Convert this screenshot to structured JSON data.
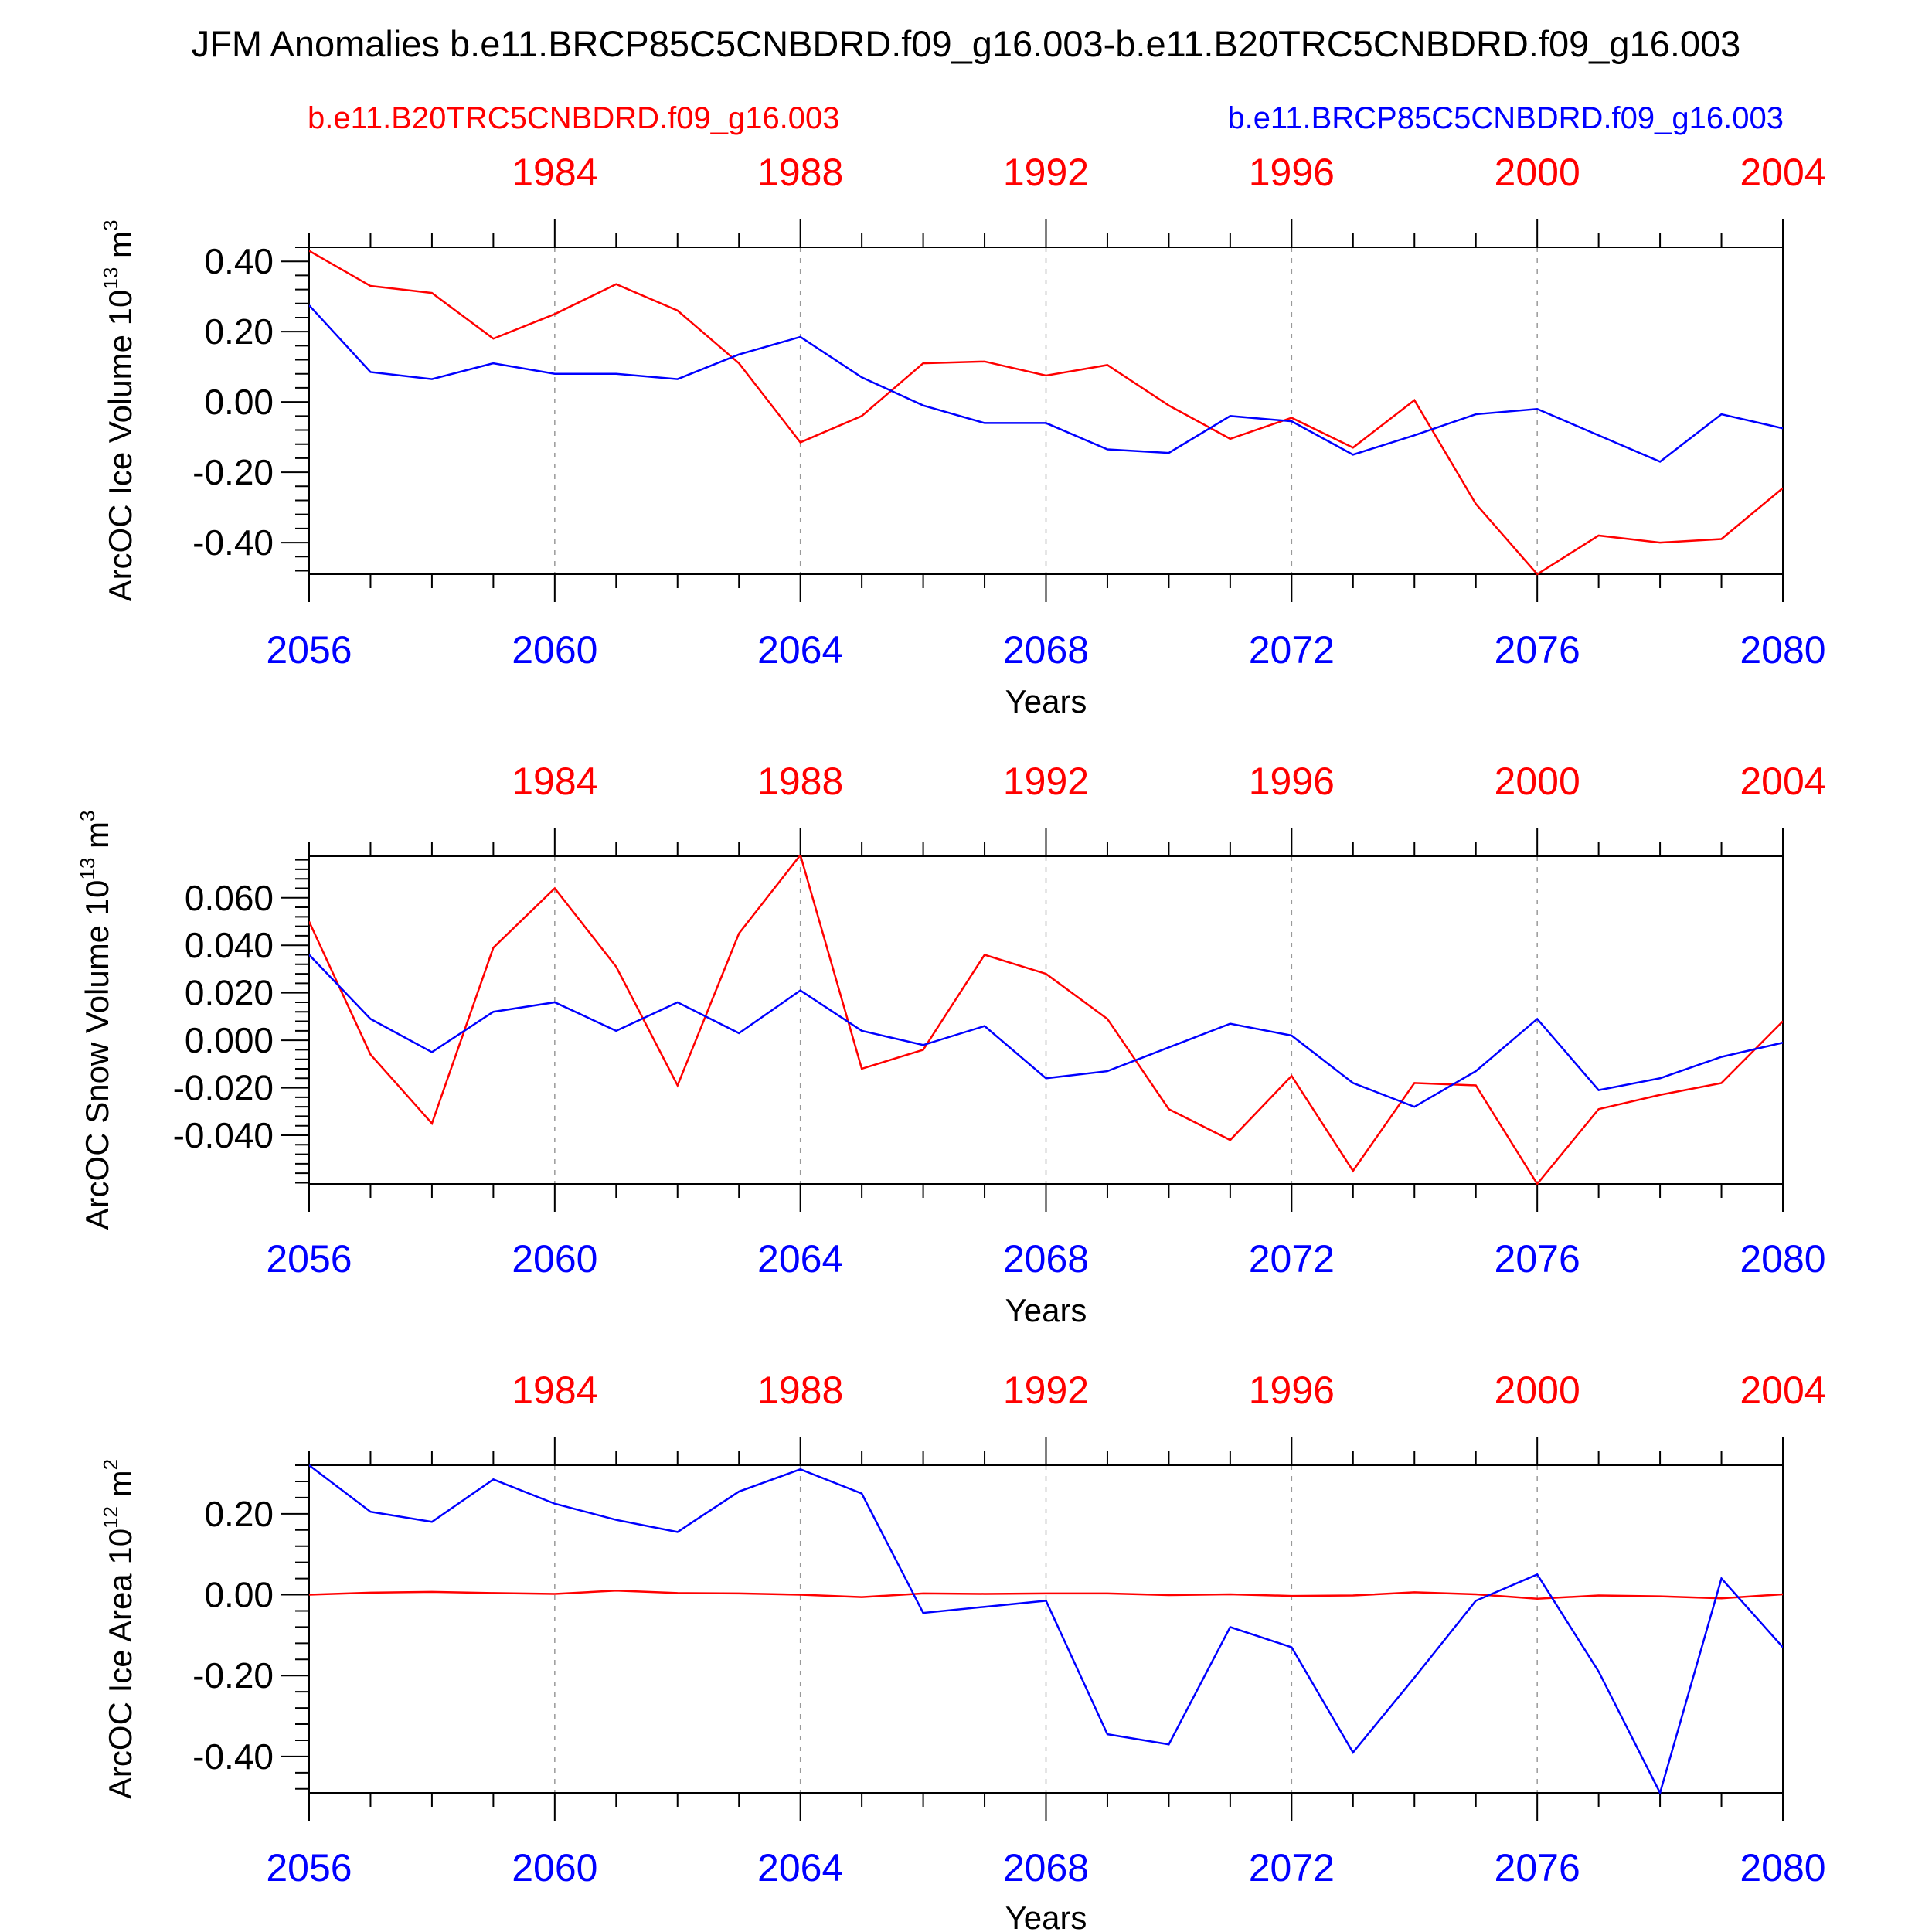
{
  "title": "JFM Anomalies b.e11.BRCP85C5CNBDRD.f09_g16.003-b.e11.B20TRC5CNBDRD.f09_g16.003",
  "legend": {
    "red_label": "b.e11.B20TRC5CNBDRD.f09_g16.003",
    "blue_label": "b.e11.BRCP85C5CNBDRD.f09_g16.003"
  },
  "colors": {
    "red": "#ff0000",
    "blue": "#0000ff",
    "axis": "#000000",
    "grid": "#999999"
  },
  "chart_data": [
    {
      "type": "line",
      "ylabel": "ArcOC Ice Volume 10",
      "ylabel_sup": "13",
      "ylabel_unit": " m",
      "ylabel_unit_sup": "3",
      "xlabel": "Years",
      "x_bottom": [
        2056,
        2057,
        2058,
        2059,
        2060,
        2061,
        2062,
        2063,
        2064,
        2065,
        2066,
        2067,
        2068,
        2069,
        2070,
        2071,
        2072,
        2073,
        2074,
        2075,
        2076,
        2077,
        2078,
        2079,
        2080
      ],
      "x_top_ticks": [
        1984,
        1988,
        1992,
        1996,
        2000,
        2004
      ],
      "x_bottom_ticks": [
        2056,
        2060,
        2064,
        2068,
        2072,
        2076,
        2080
      ],
      "y_ticks": [
        "0.40",
        "0.20",
        "0.00",
        "-0.20",
        "-0.40"
      ],
      "y_tick_values": [
        0.4,
        0.2,
        0.0,
        -0.2,
        -0.4
      ],
      "ylim": [
        -0.49,
        0.44
      ],
      "series": [
        {
          "name": "b.e11.B20TRC5CNBDRD.f09_g16.003",
          "color": "red",
          "values": [
            0.43,
            0.33,
            0.31,
            0.18,
            0.25,
            0.335,
            0.26,
            0.11,
            -0.115,
            -0.04,
            0.11,
            0.115,
            0.075,
            0.105,
            -0.01,
            -0.105,
            -0.045,
            -0.13,
            0.005,
            -0.29,
            -0.49,
            -0.38,
            -0.4,
            -0.39,
            -0.245
          ]
        },
        {
          "name": "b.e11.BRCP85C5CNBDRD.f09_g16.003",
          "color": "blue",
          "values": [
            0.275,
            0.085,
            0.065,
            0.11,
            0.08,
            0.08,
            0.065,
            0.135,
            0.185,
            0.07,
            -0.01,
            -0.06,
            -0.06,
            -0.135,
            -0.145,
            -0.04,
            -0.055,
            -0.15,
            -0.095,
            -0.035,
            -0.02,
            -0.095,
            -0.17,
            -0.035,
            -0.075
          ]
        }
      ]
    },
    {
      "type": "line",
      "ylabel": "ArcOC Snow Volume 10",
      "ylabel_sup": "13",
      "ylabel_unit": " m",
      "ylabel_unit_sup": "3",
      "xlabel": "Years",
      "x_bottom": [
        2056,
        2057,
        2058,
        2059,
        2060,
        2061,
        2062,
        2063,
        2064,
        2065,
        2066,
        2067,
        2068,
        2069,
        2070,
        2071,
        2072,
        2073,
        2074,
        2075,
        2076,
        2077,
        2078,
        2079,
        2080
      ],
      "x_top_ticks": [
        1984,
        1988,
        1992,
        1996,
        2000,
        2004
      ],
      "x_bottom_ticks": [
        2056,
        2060,
        2064,
        2068,
        2072,
        2076,
        2080
      ],
      "y_ticks": [
        "0.060",
        "0.040",
        "0.020",
        "0.000",
        "-0.020",
        "-0.040"
      ],
      "y_tick_values": [
        0.06,
        0.04,
        0.02,
        0.0,
        -0.02,
        -0.04
      ],
      "ylim": [
        -0.0605,
        0.0775
      ],
      "series": [
        {
          "name": "b.e11.B20TRC5CNBDRD.f09_g16.003",
          "color": "red",
          "values": [
            0.05,
            -0.006,
            -0.035,
            0.039,
            0.064,
            0.031,
            -0.019,
            0.045,
            0.078,
            -0.012,
            -0.004,
            0.036,
            0.028,
            0.009,
            -0.029,
            -0.042,
            -0.015,
            -0.055,
            -0.018,
            -0.019,
            -0.0605,
            -0.029,
            -0.023,
            -0.018,
            0.008
          ]
        },
        {
          "name": "b.e11.BRCP85C5CNBDRD.f09_g16.003",
          "color": "blue",
          "values": [
            0.036,
            0.009,
            -0.005,
            0.012,
            0.016,
            0.004,
            0.016,
            0.003,
            0.021,
            0.004,
            -0.002,
            0.006,
            -0.016,
            -0.013,
            -0.003,
            0.007,
            0.002,
            -0.018,
            -0.028,
            -0.013,
            0.009,
            -0.021,
            -0.016,
            -0.007,
            -0.001
          ]
        }
      ]
    },
    {
      "type": "line",
      "ylabel": "ArcOC Ice Area 10",
      "ylabel_sup": "12",
      "ylabel_unit": " m",
      "ylabel_unit_sup": "2",
      "xlabel": "Years",
      "x_bottom": [
        2056,
        2057,
        2058,
        2059,
        2060,
        2061,
        2062,
        2063,
        2064,
        2065,
        2066,
        2067,
        2068,
        2069,
        2070,
        2071,
        2072,
        2073,
        2074,
        2075,
        2076,
        2077,
        2078,
        2079,
        2080
      ],
      "x_top_ticks": [
        1984,
        1988,
        1992,
        1996,
        2000,
        2004
      ],
      "x_bottom_ticks": [
        2056,
        2060,
        2064,
        2068,
        2072,
        2076,
        2080
      ],
      "y_ticks": [
        "0.20",
        "0.00",
        "-0.20",
        "-0.40"
      ],
      "y_tick_values": [
        0.2,
        0.0,
        -0.2,
        -0.4
      ],
      "ylim": [
        -0.49,
        0.32
      ],
      "series": [
        {
          "name": "b.e11.B20TRC5CNBDRD.f09_g16.003",
          "color": "red",
          "values": [
            0.0,
            0.005,
            0.007,
            0.004,
            0.002,
            0.01,
            0.004,
            0.003,
            0.0,
            -0.006,
            0.003,
            0.002,
            0.003,
            0.003,
            -0.001,
            0.001,
            -0.003,
            -0.002,
            0.006,
            0.001,
            -0.01,
            -0.002,
            -0.004,
            -0.009,
            0.001
          ]
        },
        {
          "name": "b.e11.BRCP85C5CNBDRD.f09_g16.003",
          "color": "blue",
          "values": [
            0.32,
            0.205,
            0.18,
            0.285,
            0.225,
            0.185,
            0.155,
            0.255,
            0.31,
            0.25,
            -0.045,
            -0.03,
            -0.015,
            -0.345,
            -0.37,
            -0.08,
            -0.13,
            -0.39,
            -0.205,
            -0.015,
            0.05,
            -0.19,
            -0.49,
            0.04,
            -0.13
          ]
        }
      ]
    }
  ]
}
